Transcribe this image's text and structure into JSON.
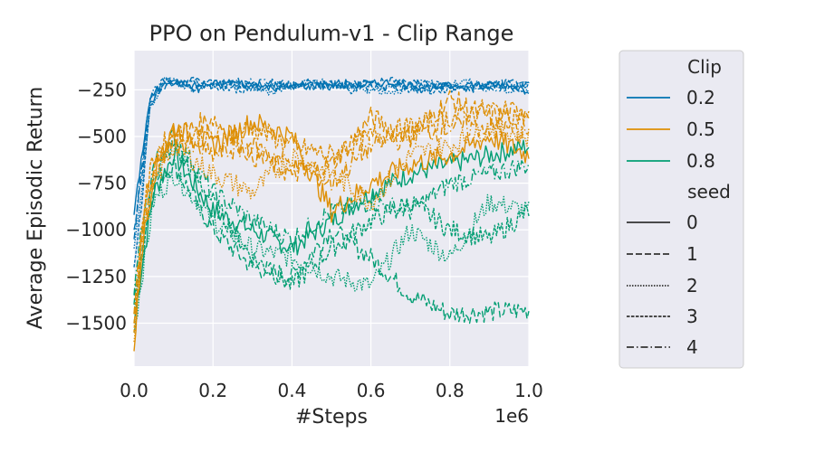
{
  "chart_data": {
    "type": "line",
    "title": "PPO on Pendulum-v1 - Clip Range",
    "xlabel": "#Steps",
    "ylabel": "Average Episodic Return",
    "x_offset_label": "1e6",
    "xlim": [
      0,
      1000000
    ],
    "ylim": [
      -1730,
      -40
    ],
    "xticks": [
      0,
      200000,
      400000,
      600000,
      800000,
      1000000
    ],
    "xtick_labels": [
      "0.0",
      "0.2",
      "0.4",
      "0.6",
      "0.8",
      "1.0"
    ],
    "yticks": [
      -250,
      -500,
      -750,
      -1000,
      -1250,
      -1500
    ],
    "ytick_labels": [
      "−250",
      "−500",
      "−750",
      "−1000",
      "−1250",
      "−1500"
    ],
    "grid": true,
    "legend": {
      "placement": "outside-right",
      "hue_title": "Clip",
      "hue_entries": [
        {
          "label": "0.2",
          "color": "#0173b2"
        },
        {
          "label": "0.5",
          "color": "#de8f05"
        },
        {
          "label": "0.8",
          "color": "#029e73"
        }
      ],
      "style_title": "seed",
      "style_entries": [
        {
          "label": "0",
          "dash": "solid"
        },
        {
          "label": "1",
          "dash": "dashed"
        },
        {
          "label": "2",
          "dash": "dotted"
        },
        {
          "label": "3",
          "dash": "densely-dashed"
        },
        {
          "label": "4",
          "dash": "dashdot"
        }
      ]
    },
    "series": [
      {
        "clip": "0.2",
        "seed": "0",
        "x": [
          0,
          20000,
          40000,
          80000,
          150000,
          250000,
          350000,
          450000,
          550000,
          650000,
          750000,
          850000,
          950000,
          1000000
        ],
        "y": [
          -920,
          -600,
          -300,
          -200,
          -230,
          -210,
          -240,
          -220,
          -230,
          -210,
          -240,
          -220,
          -230,
          -250
        ]
      },
      {
        "clip": "0.2",
        "seed": "1",
        "x": [
          0,
          20000,
          40000,
          80000,
          150000,
          250000,
          350000,
          450000,
          550000,
          650000,
          750000,
          850000,
          950000,
          1000000
        ],
        "y": [
          -1000,
          -700,
          -330,
          -220,
          -200,
          -230,
          -210,
          -240,
          -220,
          -200,
          -230,
          -240,
          -210,
          -230
        ]
      },
      {
        "clip": "0.2",
        "seed": "2",
        "x": [
          0,
          20000,
          40000,
          80000,
          150000,
          250000,
          350000,
          450000,
          550000,
          650000,
          750000,
          850000,
          950000,
          1000000
        ],
        "y": [
          -1100,
          -800,
          -350,
          -190,
          -240,
          -220,
          -260,
          -200,
          -240,
          -260,
          -220,
          -210,
          -250,
          -240
        ]
      },
      {
        "clip": "0.2",
        "seed": "3",
        "x": [
          0,
          20000,
          40000,
          80000,
          150000,
          250000,
          350000,
          450000,
          550000,
          650000,
          750000,
          850000,
          950000,
          1000000
        ],
        "y": [
          -1200,
          -850,
          -320,
          -210,
          -220,
          -250,
          -230,
          -210,
          -250,
          -230,
          -260,
          -230,
          -220,
          -220
        ]
      },
      {
        "clip": "0.2",
        "seed": "4",
        "x": [
          0,
          20000,
          40000,
          80000,
          150000,
          250000,
          350000,
          450000,
          550000,
          650000,
          750000,
          850000,
          950000,
          1000000
        ],
        "y": [
          -1050,
          -650,
          -280,
          -180,
          -250,
          -200,
          -220,
          -230,
          -210,
          -240,
          -210,
          -250,
          -240,
          -260
        ]
      },
      {
        "clip": "0.5",
        "seed": "0",
        "x": [
          0,
          20000,
          50000,
          100000,
          200000,
          300000,
          400000,
          500000,
          600000,
          700000,
          800000,
          900000,
          1000000
        ],
        "y": [
          -1650,
          -1100,
          -700,
          -450,
          -550,
          -420,
          -500,
          -900,
          -750,
          -650,
          -600,
          -500,
          -600
        ]
      },
      {
        "clip": "0.5",
        "seed": "1",
        "x": [
          0,
          20000,
          50000,
          100000,
          200000,
          300000,
          400000,
          500000,
          600000,
          700000,
          800000,
          900000,
          1000000
        ],
        "y": [
          -1500,
          -1000,
          -650,
          -500,
          -400,
          -600,
          -700,
          -650,
          -400,
          -500,
          -300,
          -400,
          -350
        ]
      },
      {
        "clip": "0.5",
        "seed": "2",
        "x": [
          0,
          20000,
          50000,
          100000,
          200000,
          300000,
          400000,
          500000,
          600000,
          700000,
          800000,
          900000,
          1000000
        ],
        "y": [
          -1600,
          -1050,
          -750,
          -550,
          -700,
          -800,
          -600,
          -700,
          -850,
          -600,
          -550,
          -450,
          -500
        ]
      },
      {
        "clip": "0.5",
        "seed": "3",
        "x": [
          0,
          20000,
          50000,
          100000,
          200000,
          300000,
          400000,
          500000,
          600000,
          700000,
          800000,
          900000,
          1000000
        ],
        "y": [
          -1550,
          -950,
          -600,
          -480,
          -500,
          -450,
          -550,
          -600,
          -500,
          -450,
          -400,
          -350,
          -400
        ]
      },
      {
        "clip": "0.5",
        "seed": "4",
        "x": [
          0,
          20000,
          50000,
          100000,
          200000,
          300000,
          400000,
          500000,
          600000,
          700000,
          800000,
          900000,
          1000000
        ],
        "y": [
          -1450,
          -1000,
          -680,
          -520,
          -600,
          -550,
          -650,
          -750,
          -550,
          -500,
          -450,
          -450,
          -480
        ]
      },
      {
        "clip": "0.8",
        "seed": "0",
        "x": [
          0,
          20000,
          50000,
          100000,
          200000,
          300000,
          400000,
          500000,
          600000,
          700000,
          800000,
          900000,
          1000000
        ],
        "y": [
          -1500,
          -1200,
          -800,
          -600,
          -900,
          -1000,
          -1100,
          -950,
          -800,
          -700,
          -650,
          -600,
          -550
        ]
      },
      {
        "clip": "0.8",
        "seed": "1",
        "x": [
          0,
          20000,
          50000,
          100000,
          200000,
          300000,
          400000,
          500000,
          600000,
          700000,
          800000,
          900000,
          1000000
        ],
        "y": [
          -1400,
          -1100,
          -750,
          -650,
          -1000,
          -1200,
          -1250,
          -1000,
          -1150,
          -1350,
          -1450,
          -1440,
          -1430
        ]
      },
      {
        "clip": "0.8",
        "seed": "2",
        "x": [
          0,
          20000,
          50000,
          100000,
          200000,
          300000,
          400000,
          500000,
          600000,
          700000,
          800000,
          900000,
          1000000
        ],
        "y": [
          -1550,
          -1250,
          -850,
          -700,
          -950,
          -1100,
          -1150,
          -1250,
          -1300,
          -1000,
          -1150,
          -850,
          -900
        ]
      },
      {
        "clip": "0.8",
        "seed": "3",
        "x": [
          0,
          20000,
          50000,
          100000,
          200000,
          300000,
          400000,
          500000,
          600000,
          700000,
          800000,
          900000,
          1000000
        ],
        "y": [
          -1450,
          -1150,
          -700,
          -550,
          -850,
          -1150,
          -1300,
          -1100,
          -950,
          -850,
          -1000,
          -1050,
          -900
        ]
      },
      {
        "clip": "0.8",
        "seed": "4",
        "x": [
          0,
          20000,
          50000,
          100000,
          200000,
          300000,
          400000,
          500000,
          600000,
          700000,
          800000,
          900000,
          1000000
        ],
        "y": [
          -1350,
          -1000,
          -650,
          -500,
          -800,
          -950,
          -1050,
          -900,
          -850,
          -900,
          -750,
          -700,
          -650
        ]
      }
    ]
  }
}
